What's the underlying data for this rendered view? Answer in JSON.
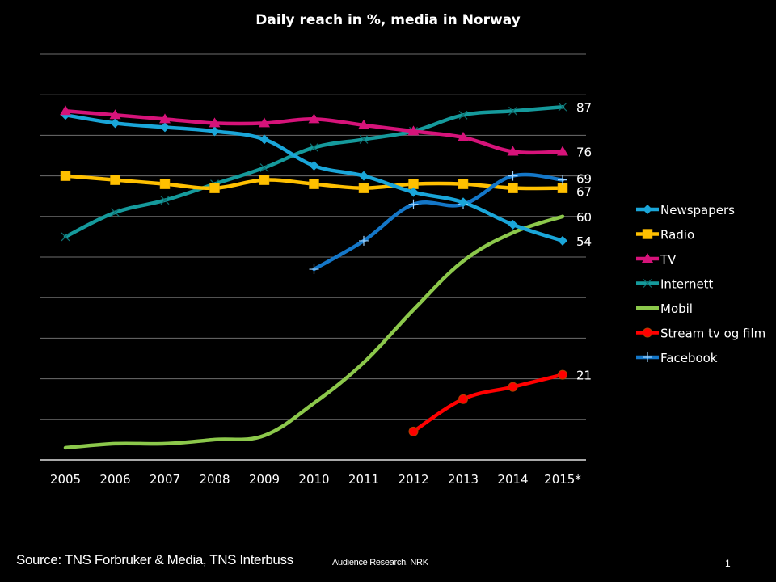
{
  "chart_data": {
    "type": "line",
    "title": "Daily reach in %, media in Norway",
    "xlabel": "",
    "ylabel": "",
    "x": [
      "2005",
      "2006",
      "2007",
      "2008",
      "2009",
      "2010",
      "2011",
      "2012",
      "2013",
      "2014",
      "2015*"
    ],
    "ylim": [
      0,
      100
    ],
    "y_gridlines": [
      10,
      20,
      30,
      40,
      50,
      60,
      70,
      80,
      90,
      100
    ],
    "grid": true,
    "y_tick_labels_shown": false,
    "legend_position": "right",
    "series": [
      {
        "name": "Newspapers",
        "color": "#1AA6D9",
        "marker": "diamond",
        "smooth": true,
        "values": [
          85,
          83,
          82,
          81,
          79,
          72.5,
          70,
          66,
          63.5,
          58,
          54
        ],
        "end_label": "54"
      },
      {
        "name": "Radio",
        "color": "#FFC000",
        "marker": "square",
        "smooth": true,
        "values": [
          70,
          69,
          68,
          67,
          69,
          68,
          67,
          68,
          68,
          67,
          67
        ],
        "end_label": "67"
      },
      {
        "name": "TV",
        "color": "#D6137A",
        "marker": "triangle",
        "smooth": true,
        "values": [
          86,
          85,
          84,
          83,
          83,
          84,
          82.5,
          81,
          79.5,
          76,
          76
        ],
        "end_label": "76"
      },
      {
        "name": "Internett",
        "color": "#159A9C",
        "marker": "x",
        "smooth": true,
        "values": [
          55,
          61,
          64,
          68,
          72,
          77,
          79,
          81,
          85,
          86,
          87
        ],
        "end_label": "87"
      },
      {
        "name": "Mobil",
        "color": "#8CC84B",
        "marker": "none",
        "smooth": true,
        "values": [
          3,
          4,
          4,
          5,
          6,
          14,
          24,
          37,
          49,
          56,
          60
        ],
        "end_label": "60"
      },
      {
        "name": "Stream tv og film",
        "color": "#FF0000",
        "marker": "circle",
        "smooth": true,
        "values": [
          null,
          null,
          null,
          null,
          null,
          null,
          null,
          7,
          15,
          18,
          21
        ],
        "end_label": "21"
      },
      {
        "name": "Facebook",
        "color": "#1477C8",
        "marker": "plus",
        "smooth": true,
        "values": [
          null,
          null,
          null,
          null,
          null,
          47,
          54,
          63,
          63,
          70,
          69
        ],
        "end_label": "69"
      }
    ]
  },
  "footer": {
    "source": "Source: TNS Forbruker & Media, TNS Interbuss",
    "credit": "Audience Research, NRK",
    "page_number": "1"
  }
}
